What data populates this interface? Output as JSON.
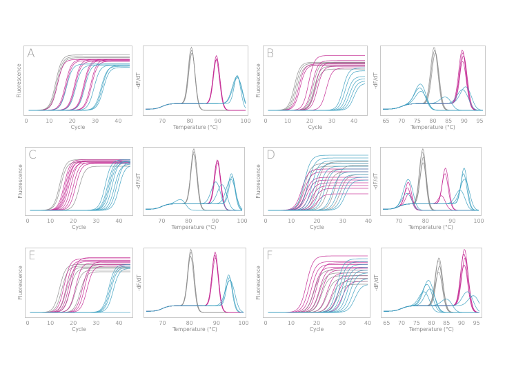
{
  "colors": {
    "gray": "#8c8c8c",
    "magenta": "#c2228f",
    "teal": "#3a9fc0"
  },
  "chart_data": [
    {
      "panel": "A",
      "type": "line",
      "kind": "amplification",
      "xlabel": "Cycle",
      "ylabel": "Fluorescence",
      "xlim": [
        0,
        45
      ],
      "xticks": [
        0,
        10,
        20,
        30,
        40
      ],
      "series": [
        {
          "color": "gray",
          "cq": [
            12.8,
            13.2,
            13.6
          ],
          "plateau": [
            0.98,
            0.95,
            0.93
          ]
        },
        {
          "color": "magenta",
          "cq": [
            13.5,
            17,
            17.4,
            21,
            21.3,
            25,
            25.3,
            28,
            28.4
          ],
          "plateau": [
            0.9,
            0.9,
            0.88,
            0.9,
            0.87,
            0.9,
            0.88,
            0.9,
            0.87
          ]
        },
        {
          "color": "teal",
          "cq": [
            17.5,
            21.5,
            25.5,
            29.5,
            32.5,
            33,
            33.5
          ],
          "plateau": [
            0.82,
            0.8,
            0.82,
            0.8,
            0.78,
            0.8,
            0.76
          ]
        }
      ]
    },
    {
      "panel": "A",
      "type": "line",
      "kind": "melt",
      "xlabel": "Temperature (°C)",
      "ylabel": "-dF/dT",
      "xlim": [
        64,
        100
      ],
      "xticks": [
        70,
        80,
        90,
        100
      ],
      "series": [
        {
          "color": "gray",
          "tm": [
            80.5,
            80.6,
            80.7
          ],
          "peak": [
            1,
            0.95,
            0.9
          ]
        },
        {
          "color": "magenta",
          "tm": [
            89.5,
            89.6,
            89.4
          ],
          "peak": [
            0.85,
            0.8,
            0.78
          ]
        },
        {
          "color": "teal",
          "tm": [
            97,
            96.9,
            97.1
          ],
          "peak": [
            0.5,
            0.48,
            0.46
          ]
        }
      ]
    },
    {
      "panel": "B",
      "type": "line",
      "kind": "amplification",
      "xlabel": "Cycle",
      "ylabel": "Fluorescence",
      "xlim": [
        0,
        45
      ],
      "xticks": [
        0,
        10,
        20,
        30,
        40
      ],
      "series": [
        {
          "color": "gray",
          "cq": [
            13,
            13.6,
            14.2,
            21.5,
            22,
            22.5
          ],
          "plateau": [
            0.85,
            0.83,
            0.8,
            0.85,
            0.78,
            0.73
          ]
        },
        {
          "color": "magenta",
          "cq": [
            15,
            15.6,
            19.5,
            21,
            22.5,
            23.5,
            27.5
          ],
          "plateau": [
            0.82,
            0.8,
            0.97,
            0.88,
            0.84,
            0.78,
            0.75
          ]
        },
        {
          "color": "teal",
          "cq": [
            35,
            36,
            37,
            38,
            39,
            40
          ],
          "plateau": [
            0.75,
            0.7,
            0.6,
            0.56,
            0.52,
            0.48
          ]
        }
      ]
    },
    {
      "panel": "B",
      "type": "line",
      "kind": "melt",
      "xlabel": "Temperature (°C)",
      "ylabel": "-dF/dT",
      "xlim": [
        64,
        96
      ],
      "xticks": [
        65,
        70,
        75,
        80,
        85,
        90,
        95
      ],
      "series": [
        {
          "color": "gray",
          "tm": [
            80.4,
            80.6,
            80.8
          ],
          "peak": [
            1,
            0.95,
            0.9
          ]
        },
        {
          "color": "magenta",
          "tm": [
            89.4,
            89.6,
            89.8,
            89.5
          ],
          "peak": [
            0.95,
            0.9,
            0.85,
            0.75
          ]
        },
        {
          "color": "teal",
          "tm": [
            76,
            75.8,
            76.2,
            84,
            89.5,
            90.5
          ],
          "peak": [
            0.35,
            0.28,
            0.22,
            0.12,
            0.25,
            0.3
          ]
        }
      ]
    },
    {
      "panel": "C",
      "type": "line",
      "kind": "amplification",
      "xlabel": "Cycle",
      "ylabel": "Fluorescence",
      "xlim": [
        0,
        45
      ],
      "xticks": [
        0,
        10,
        20,
        30,
        40
      ],
      "series": [
        {
          "color": "gray",
          "cq": [
            14,
            14.5,
            22.5
          ],
          "plateau": [
            0.92,
            0.88,
            0.8
          ]
        },
        {
          "color": "magenta",
          "cq": [
            16,
            16.5,
            17,
            17.5,
            18,
            19,
            20,
            21
          ],
          "plateau": [
            0.92,
            0.9,
            0.88,
            0.9,
            0.86,
            0.9,
            0.87,
            0.85
          ]
        },
        {
          "color": "teal",
          "cq": [
            34,
            35,
            35.5,
            36,
            37,
            38,
            39,
            40
          ],
          "plateau": [
            0.92,
            0.9,
            0.88,
            0.86,
            0.9,
            0.84,
            0.88,
            0.82
          ]
        }
      ]
    },
    {
      "panel": "C",
      "type": "line",
      "kind": "melt",
      "xlabel": "Temperature (°C)",
      "ylabel": "-dF/dT",
      "xlim": [
        64,
        100
      ],
      "xticks": [
        70,
        80,
        90,
        100
      ],
      "series": [
        {
          "color": "gray",
          "tm": [
            82,
            82.1,
            81.9
          ],
          "peak": [
            1,
            0.95,
            0.9
          ]
        },
        {
          "color": "magenta",
          "tm": [
            90.8,
            90.7,
            90.9
          ],
          "peak": [
            0.8,
            0.78,
            0.74
          ]
        },
        {
          "color": "teal",
          "tm": [
            96,
            96.3,
            95.8,
            90.2,
            92.5,
            77
          ],
          "peak": [
            0.55,
            0.5,
            0.45,
            0.4,
            0.35,
            0.08
          ]
        }
      ]
    },
    {
      "panel": "D",
      "type": "line",
      "kind": "amplification",
      "xlabel": "Cycle",
      "ylabel": "Fluorescence",
      "xlim": [
        0,
        40
      ],
      "xticks": [
        0,
        10,
        20,
        30,
        40
      ],
      "series": [
        {
          "color": "gray",
          "cq": [
            15,
            16,
            20,
            22,
            24,
            27,
            29
          ],
          "plateau": [
            0.85,
            0.8,
            0.88,
            0.75,
            0.7,
            0.82,
            0.65
          ]
        },
        {
          "color": "magenta",
          "cq": [
            14,
            15,
            15.5,
            16,
            17,
            18,
            19,
            20
          ],
          "plateau": [
            0.75,
            0.7,
            0.6,
            0.55,
            0.5,
            0.45,
            0.4,
            0.3
          ]
        },
        {
          "color": "teal",
          "cq": [
            15,
            16.5,
            18,
            19,
            21,
            23,
            26,
            28,
            30,
            31
          ],
          "plateau": [
            1,
            0.95,
            0.9,
            0.85,
            0.8,
            0.75,
            0.7,
            0.65,
            0.6,
            0.55
          ]
        }
      ]
    },
    {
      "panel": "D",
      "type": "line",
      "kind": "melt",
      "xlabel": "Temperature (°C)",
      "ylabel": "-dF/dT",
      "xlim": [
        64,
        100
      ],
      "xticks": [
        70,
        80,
        90,
        100
      ],
      "series": [
        {
          "color": "gray",
          "tm": [
            79,
            78.8,
            79.2,
            79.1
          ],
          "peak": [
            1,
            0.95,
            0.85,
            0.75
          ]
        },
        {
          "color": "magenta",
          "tm": [
            87.5,
            87.3,
            73.5,
            73.2,
            73.8,
            86
          ],
          "peak": [
            0.65,
            0.55,
            0.4,
            0.3,
            0.2,
            0.15
          ]
        },
        {
          "color": "teal",
          "tm": [
            94.5,
            94.3,
            94.7,
            73.5,
            73,
            93
          ],
          "peak": [
            0.65,
            0.55,
            0.45,
            0.45,
            0.2,
            0.25
          ]
        }
      ]
    },
    {
      "panel": "E",
      "type": "line",
      "kind": "amplification",
      "xlabel": "Cycle",
      "ylabel": "Fluorescence",
      "xlim": [
        0,
        45
      ],
      "xticks": [
        0,
        10,
        20,
        30,
        40
      ],
      "series": [
        {
          "color": "gray",
          "cq": [
            14,
            15,
            17,
            18.5,
            21,
            23
          ],
          "plateau": [
            0.85,
            0.82,
            0.8,
            0.78,
            0.75,
            0.72
          ]
        },
        {
          "color": "magenta",
          "cq": [
            16,
            17,
            18,
            19,
            21,
            24,
            25,
            26
          ],
          "plateau": [
            0.95,
            0.92,
            0.9,
            0.97,
            0.88,
            0.85,
            0.9,
            0.82
          ]
        },
        {
          "color": "teal",
          "cq": [
            35.5,
            36,
            36.5,
            37.5,
            200
          ],
          "plateau": [
            0.85,
            0.82,
            0.8,
            0.78,
            0
          ]
        }
      ]
    },
    {
      "panel": "E",
      "type": "line",
      "kind": "melt",
      "xlabel": "Temperature (°C)",
      "ylabel": "-dF/dT",
      "xlim": [
        64,
        100
      ],
      "xticks": [
        70,
        80,
        90,
        100
      ],
      "series": [
        {
          "color": "gray",
          "tm": [
            80.5,
            80.6,
            80.4
          ],
          "peak": [
            1,
            0.95,
            0.88
          ]
        },
        {
          "color": "magenta",
          "tm": [
            89.5,
            89.4,
            89.6
          ],
          "peak": [
            0.95,
            0.9,
            0.85
          ]
        },
        {
          "color": "teal",
          "tm": [
            94.5,
            94.8,
            95
          ],
          "peak": [
            0.55,
            0.5,
            0.45
          ]
        }
      ]
    },
    {
      "panel": "F",
      "type": "line",
      "kind": "amplification",
      "xlabel": "Cycle",
      "ylabel": "Fluorescence",
      "xlim": [
        0,
        40
      ],
      "xticks": [
        0,
        10,
        20,
        30,
        40
      ],
      "series": [
        {
          "color": "magenta",
          "cq": [
            16,
            17,
            18,
            19,
            20,
            21,
            22,
            24,
            26,
            28,
            30
          ],
          "plateau": [
            1,
            0.9,
            0.85,
            0.8,
            0.88,
            0.78,
            0.75,
            0.7,
            0.65,
            0.6,
            0.55
          ]
        },
        {
          "color": "gray",
          "cq": [
            19,
            21,
            22,
            24,
            26,
            28
          ],
          "plateau": [
            0.75,
            0.7,
            0.65,
            0.6,
            0.55,
            0.5
          ]
        },
        {
          "color": "teal",
          "cq": [
            28,
            29,
            30,
            31,
            32,
            33,
            34,
            35
          ],
          "plateau": [
            0.95,
            0.9,
            0.85,
            0.8,
            0.75,
            0.7,
            0.6,
            0.5
          ]
        }
      ]
    },
    {
      "panel": "F",
      "type": "line",
      "kind": "melt",
      "xlabel": "Temperature (°C)",
      "ylabel": "-dF/dT",
      "xlim": [
        64,
        96
      ],
      "xticks": [
        65,
        70,
        75,
        80,
        85,
        90,
        95
      ],
      "series": [
        {
          "color": "gray",
          "tm": [
            82.5,
            82.3,
            82.7,
            82.4
          ],
          "peak": [
            0.85,
            0.8,
            0.7,
            0.6
          ]
        },
        {
          "color": "magenta",
          "tm": [
            91,
            90.8,
            91.2,
            90.9
          ],
          "peak": [
            1,
            0.92,
            0.85,
            0.72
          ]
        },
        {
          "color": "teal",
          "tm": [
            79,
            78.5,
            79.5,
            77.5,
            85,
            92,
            94
          ],
          "peak": [
            0.45,
            0.38,
            0.3,
            0.25,
            0.12,
            0.25,
            0.18
          ]
        }
      ]
    }
  ]
}
